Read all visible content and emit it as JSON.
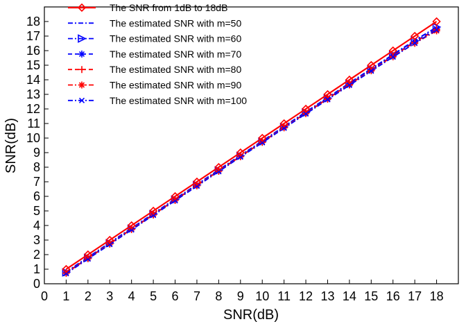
{
  "chart_data": {
    "type": "line",
    "xlabel": "SNR(dB)",
    "ylabel": "SNR(dB)",
    "xlim": [
      0,
      19
    ],
    "ylim": [
      0,
      19
    ],
    "xticks": [
      0,
      1,
      2,
      3,
      4,
      5,
      6,
      7,
      8,
      9,
      10,
      11,
      12,
      13,
      14,
      15,
      16,
      17,
      18
    ],
    "yticks": [
      0,
      1,
      2,
      3,
      4,
      5,
      6,
      7,
      8,
      9,
      10,
      11,
      12,
      13,
      14,
      15,
      16,
      17,
      18
    ],
    "legend_position": "top-left",
    "x": [
      1,
      2,
      3,
      4,
      5,
      6,
      7,
      8,
      9,
      10,
      11,
      12,
      13,
      14,
      15,
      16,
      17,
      18
    ],
    "series": [
      {
        "name": "The SNR from 1dB to 18dB",
        "color": "#ff0000",
        "line": "solid",
        "marker": "diamond",
        "values": [
          1,
          2,
          3,
          4,
          5,
          6,
          7,
          8,
          9,
          10,
          11,
          12,
          13,
          14,
          15,
          16,
          17,
          18
        ]
      },
      {
        "name": "The estimated SNR with m=50",
        "color": "#0000ff",
        "line": "dashdot",
        "marker": "none",
        "values": [
          0.82,
          1.82,
          2.82,
          3.82,
          4.82,
          5.82,
          6.82,
          7.82,
          8.82,
          9.8,
          10.8,
          11.8,
          12.78,
          13.78,
          14.76,
          15.74,
          16.72,
          17.6
        ]
      },
      {
        "name": "The estimated SNR with m=60",
        "color": "#0000ff",
        "line": "dashdot",
        "marker": "triangle-right",
        "values": [
          0.78,
          1.78,
          2.78,
          3.78,
          4.78,
          5.78,
          6.78,
          7.78,
          8.78,
          9.76,
          10.76,
          11.76,
          12.74,
          13.72,
          14.72,
          15.7,
          16.68,
          17.62
        ]
      },
      {
        "name": "The estimated SNR with m=70",
        "color": "#0000ff",
        "line": "dashed",
        "marker": "star",
        "values": [
          0.76,
          1.76,
          2.76,
          3.76,
          4.76,
          5.76,
          6.76,
          7.76,
          8.76,
          9.74,
          10.74,
          11.72,
          12.72,
          13.7,
          14.68,
          15.66,
          16.62,
          17.5
        ]
      },
      {
        "name": "The estimated SNR with m=80",
        "color": "#ff0000",
        "line": "dashed",
        "marker": "plus",
        "values": [
          0.74,
          1.74,
          2.74,
          3.74,
          4.74,
          5.74,
          6.74,
          7.74,
          8.74,
          9.72,
          10.72,
          11.7,
          12.7,
          13.68,
          14.64,
          15.62,
          16.58,
          17.44
        ]
      },
      {
        "name": "The estimated SNR with m=90",
        "color": "#ff0000",
        "line": "dashdot",
        "marker": "asterisk",
        "values": [
          0.72,
          1.72,
          2.72,
          3.72,
          4.72,
          5.72,
          6.72,
          7.72,
          8.72,
          9.7,
          10.7,
          11.68,
          12.66,
          13.64,
          14.62,
          15.58,
          16.5,
          17.36
        ]
      },
      {
        "name": "The estimated SNR with m=100",
        "color": "#0000ff",
        "line": "dashdot",
        "marker": "x",
        "values": [
          0.7,
          1.7,
          2.7,
          3.7,
          4.7,
          5.7,
          6.7,
          7.7,
          8.7,
          9.68,
          10.68,
          11.66,
          12.64,
          13.62,
          14.6,
          15.56,
          16.52,
          17.42
        ]
      }
    ]
  }
}
